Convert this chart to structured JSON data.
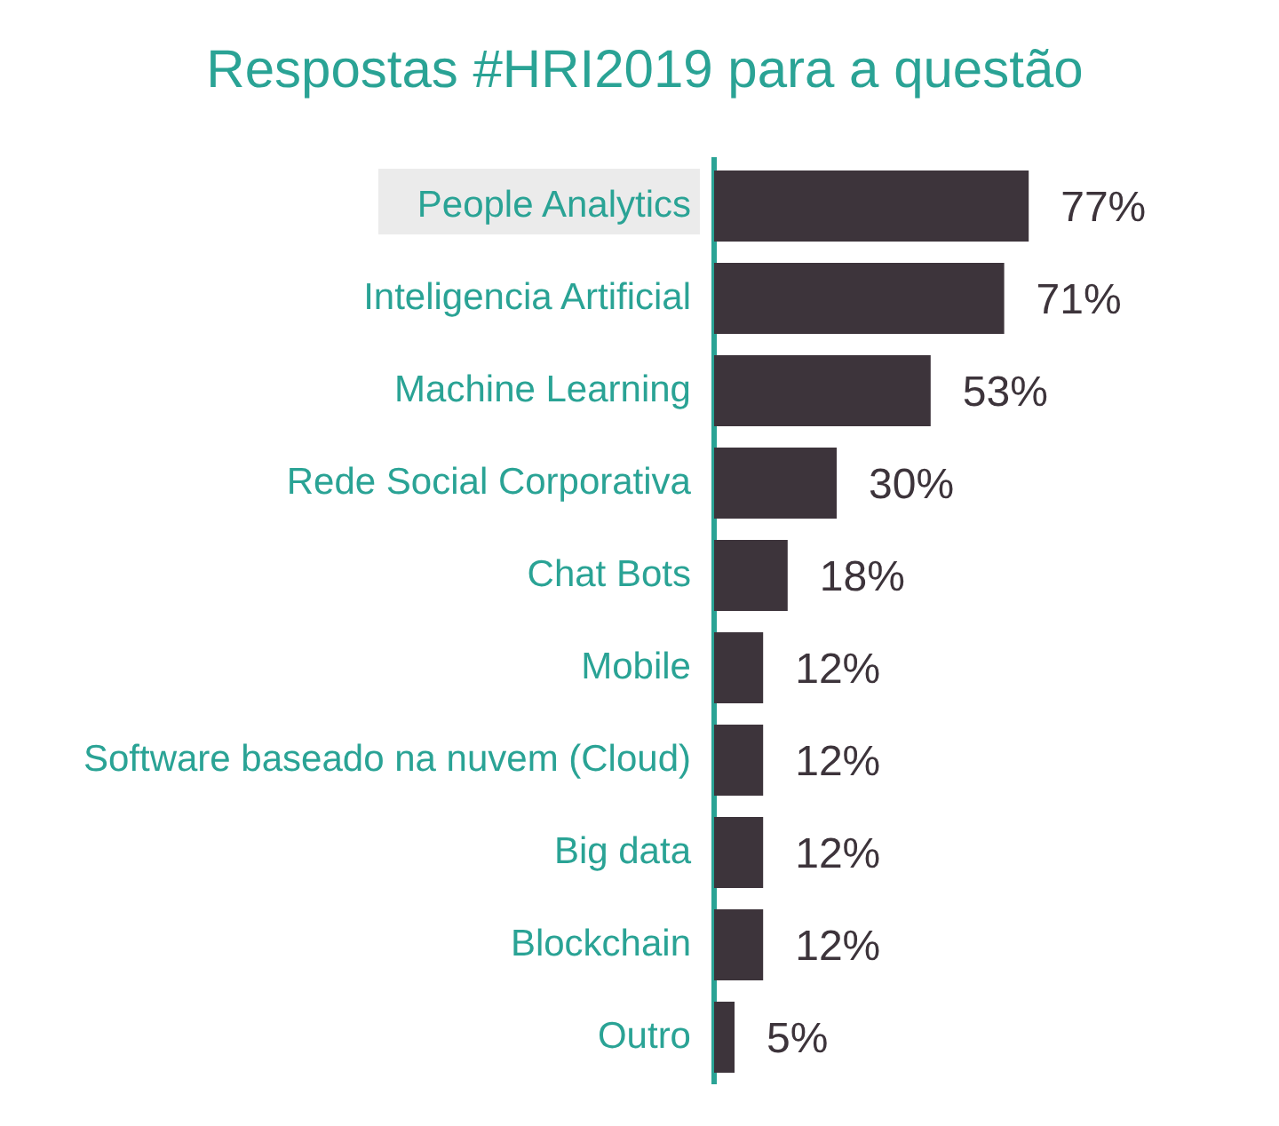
{
  "chart_data": {
    "type": "bar",
    "orientation": "horizontal",
    "title": "Respostas #HRI2019 para a questão",
    "categories": [
      "People Analytics",
      "Inteligencia Artificial",
      "Machine Learning",
      "Rede Social Corporativa",
      "Chat Bots",
      "Mobile",
      "Software baseado na nuvem (Cloud)",
      "Big data",
      "Blockchain",
      "Outro"
    ],
    "values": [
      77,
      71,
      53,
      30,
      18,
      12,
      12,
      12,
      12,
      5
    ],
    "value_labels": [
      "77%",
      "71%",
      "53%",
      "30%",
      "18%",
      "12%",
      "12%",
      "12%",
      "12%",
      "5%"
    ],
    "color": "#3d343b",
    "tick_labels": "y",
    "grid": false,
    "legend": false
  }
}
